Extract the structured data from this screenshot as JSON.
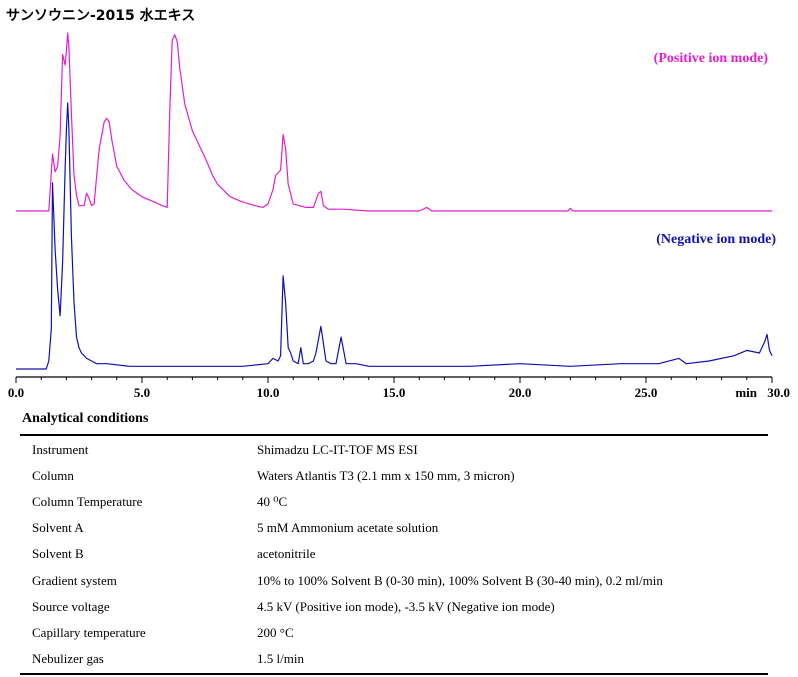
{
  "title": "サンソウニン-2015 水エキス",
  "chart_data": [
    {
      "type": "line",
      "series": [
        {
          "name": "(Positive ion mode)",
          "color": "#e020d0",
          "x": [
            0.0,
            1.3,
            1.45,
            1.55,
            1.65,
            1.75,
            1.85,
            1.95,
            2.0,
            2.05,
            2.1,
            2.2,
            2.3,
            2.4,
            2.5,
            2.7,
            2.8,
            2.9,
            3.0,
            3.1,
            3.3,
            3.5,
            3.6,
            3.7,
            3.8,
            4.0,
            4.3,
            4.6,
            5.0,
            5.5,
            5.8,
            6.0,
            6.1,
            6.2,
            6.3,
            6.4,
            6.5,
            6.7,
            7.0,
            7.5,
            7.8,
            8.0,
            8.5,
            9.0,
            9.5,
            9.8,
            10.0,
            10.2,
            10.3,
            10.5,
            10.6,
            10.7,
            10.8,
            11.0,
            11.5,
            11.8,
            12.0,
            12.1,
            12.2,
            12.4,
            13.0,
            14.0,
            15.0,
            16.0,
            16.3,
            16.5,
            18.0,
            20.0,
            21.9,
            22.0,
            22.1,
            24.0,
            26.0,
            28.0,
            30.0
          ],
          "y": [
            0,
            0,
            0.32,
            0.22,
            0.25,
            0.42,
            0.88,
            0.82,
            0.9,
            1.0,
            0.92,
            0.55,
            0.2,
            0.09,
            0.03,
            0.03,
            0.1,
            0.07,
            0.03,
            0.04,
            0.35,
            0.5,
            0.52,
            0.5,
            0.4,
            0.25,
            0.17,
            0.12,
            0.08,
            0.05,
            0.03,
            0.02,
            0.55,
            0.96,
            0.99,
            0.95,
            0.8,
            0.6,
            0.45,
            0.3,
            0.2,
            0.15,
            0.08,
            0.05,
            0.03,
            0.02,
            0.04,
            0.12,
            0.2,
            0.23,
            0.43,
            0.35,
            0.15,
            0.04,
            0.02,
            0.02,
            0.1,
            0.11,
            0.03,
            0.01,
            0.01,
            0.0,
            0.0,
            0.0,
            0.02,
            0.0,
            0.0,
            0.0,
            0.0,
            0.015,
            0.0,
            0.0,
            0.0,
            0.0,
            0.0
          ]
        },
        {
          "name": "(Negative ion mode)",
          "color": "#1010b0",
          "x": [
            0.0,
            1.2,
            1.3,
            1.4,
            1.45,
            1.55,
            1.65,
            1.75,
            1.85,
            1.95,
            2.0,
            2.05,
            2.1,
            2.2,
            2.3,
            2.4,
            2.5,
            2.6,
            2.8,
            3.0,
            3.2,
            3.6,
            4.5,
            6.0,
            7.5,
            9.0,
            10.0,
            10.2,
            10.4,
            10.5,
            10.6,
            10.7,
            10.8,
            10.9,
            11.0,
            11.2,
            11.3,
            11.4,
            11.6,
            11.8,
            11.9,
            12.1,
            12.3,
            12.5,
            12.7,
            12.9,
            13.1,
            13.5,
            14.0,
            16.0,
            18.0,
            20.0,
            22.0,
            24.0,
            25.5,
            26.3,
            26.6,
            27.5,
            28.5,
            29.0,
            29.5,
            29.7,
            29.8,
            29.9,
            30.0
          ],
          "y": [
            0,
            0,
            0.03,
            0.15,
            0.7,
            0.45,
            0.3,
            0.2,
            0.4,
            0.75,
            0.9,
            1.0,
            0.9,
            0.5,
            0.25,
            0.12,
            0.08,
            0.06,
            0.04,
            0.03,
            0.02,
            0.02,
            0.01,
            0.01,
            0.01,
            0.01,
            0.02,
            0.04,
            0.03,
            0.05,
            0.35,
            0.25,
            0.08,
            0.06,
            0.03,
            0.02,
            0.08,
            0.02,
            0.02,
            0.03,
            0.06,
            0.16,
            0.03,
            0.02,
            0.02,
            0.12,
            0.02,
            0.02,
            0.01,
            0.01,
            0.01,
            0.02,
            0.01,
            0.02,
            0.02,
            0.04,
            0.02,
            0.03,
            0.05,
            0.07,
            0.06,
            0.1,
            0.13,
            0.07,
            0.05
          ]
        }
      ],
      "xlim": [
        0,
        30
      ],
      "xticks": [
        "0.0",
        "5.0",
        "10.0",
        "15.0",
        "20.0",
        "25.0",
        "30.0"
      ],
      "xlabel": "min",
      "grid": false,
      "legend": "top-right"
    }
  ],
  "conditions": {
    "heading": "Analytical conditions",
    "rows": [
      {
        "key": "Instrument",
        "value": "Shimadzu LC-IT-TOF MS ESI"
      },
      {
        "key": "Column",
        "value": "Waters Atlantis T3 (2.1 mm x 150 mm, 3 micron)"
      },
      {
        "key": "Column Temperature",
        "value": "40 ⁰C"
      },
      {
        "key": "Solvent A",
        "value": "5 mM Ammonium acetate solution"
      },
      {
        "key": "Solvent B",
        "value": "acetonitrile"
      },
      {
        "key": "Gradient system",
        "value": "10% to 100% Solvent B (0-30 min), 100% Solvent B (30-40 min), 0.2 ml/min"
      },
      {
        "key": "Source voltage",
        "value": "4.5 kV (Positive ion mode), -3.5 kV (Negative ion mode)"
      },
      {
        "key": "Capillary temperature",
        "value": "200 °C"
      },
      {
        "key": "Nebulizer gas",
        "value": "1.5 l/min"
      }
    ]
  }
}
